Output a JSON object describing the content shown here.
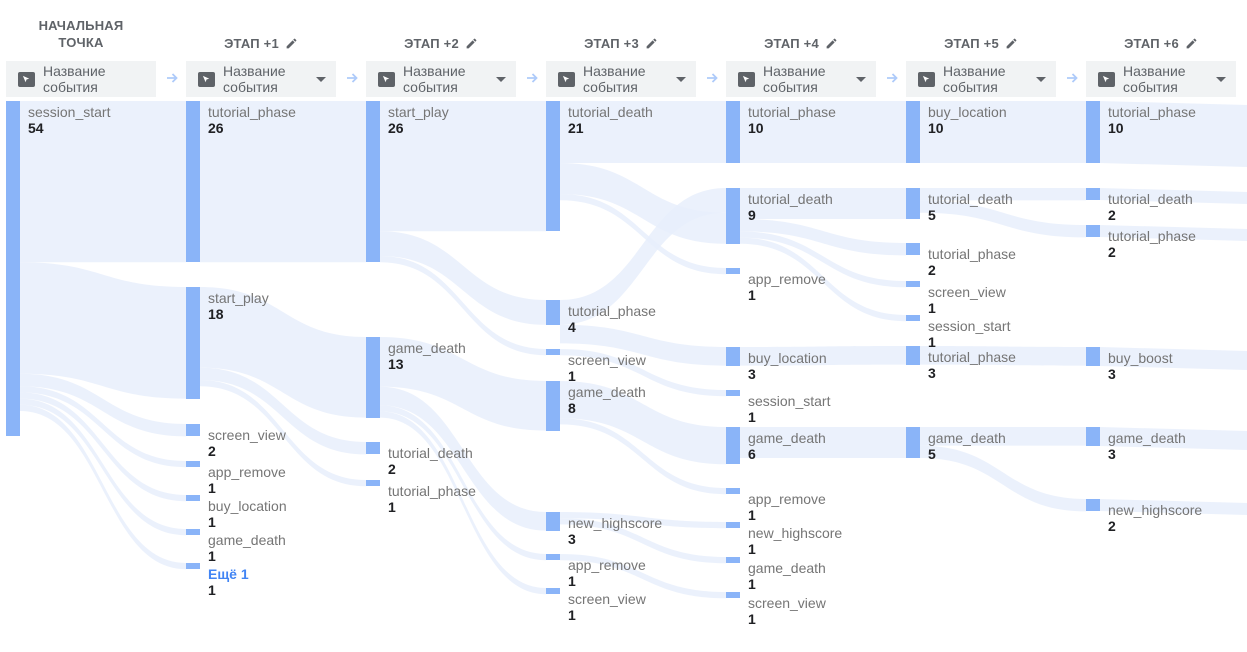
{
  "columns": [
    {
      "title_lines": [
        "НАЧАЛЬНАЯ",
        "ТОЧКА"
      ],
      "dimension": "Название события",
      "has_dropdown": false
    },
    {
      "title_lines": [
        "ЭТАП +1"
      ],
      "dimension": "Название события",
      "has_dropdown": true
    },
    {
      "title_lines": [
        "ЭТАП +2"
      ],
      "dimension": "Название события",
      "has_dropdown": true
    },
    {
      "title_lines": [
        "ЭТАП +3"
      ],
      "dimension": "Название события",
      "has_dropdown": true
    },
    {
      "title_lines": [
        "ЭТАП +4"
      ],
      "dimension": "Название события",
      "has_dropdown": true
    },
    {
      "title_lines": [
        "ЭТАП +5"
      ],
      "dimension": "Название события",
      "has_dropdown": true
    },
    {
      "title_lines": [
        "ЭТАП +6"
      ],
      "dimension": "Название события",
      "has_dropdown": true
    }
  ],
  "nodes": [
    [
      {
        "name": "session_start",
        "value": 54
      }
    ],
    [
      {
        "name": "tutorial_phase",
        "value": 26
      },
      {
        "name": "start_play",
        "value": 18
      },
      {
        "name": "screen_view",
        "value": 2
      },
      {
        "name": "app_remove",
        "value": 1
      },
      {
        "name": "buy_location",
        "value": 1
      },
      {
        "name": "game_death",
        "value": 1
      },
      {
        "name": "Ещё 1",
        "value": 1,
        "more": true
      }
    ],
    [
      {
        "name": "start_play",
        "value": 26
      },
      {
        "name": "game_death",
        "value": 13
      },
      {
        "name": "tutorial_death",
        "value": 2
      },
      {
        "name": "tutorial_phase",
        "value": 1
      }
    ],
    [
      {
        "name": "tutorial_death",
        "value": 21
      },
      {
        "name": "tutorial_phase",
        "value": 4
      },
      {
        "name": "screen_view",
        "value": 1
      },
      {
        "name": "game_death",
        "value": 8
      },
      {
        "name": "new_highscore",
        "value": 3
      },
      {
        "name": "app_remove",
        "value": 1
      },
      {
        "name": "screen_view",
        "value": 1
      }
    ],
    [
      {
        "name": "tutorial_phase",
        "value": 10
      },
      {
        "name": "tutorial_death",
        "value": 9
      },
      {
        "name": "app_remove",
        "value": 1
      },
      {
        "name": "buy_location",
        "value": 3
      },
      {
        "name": "session_start",
        "value": 1
      },
      {
        "name": "game_death",
        "value": 6
      },
      {
        "name": "app_remove",
        "value": 1
      },
      {
        "name": "new_highscore",
        "value": 1
      },
      {
        "name": "game_death",
        "value": 1
      },
      {
        "name": "screen_view",
        "value": 1
      }
    ],
    [
      {
        "name": "buy_location",
        "value": 10
      },
      {
        "name": "tutorial_death",
        "value": 5
      },
      {
        "name": "tutorial_phase",
        "value": 2
      },
      {
        "name": "screen_view",
        "value": 1
      },
      {
        "name": "session_start",
        "value": 1
      },
      {
        "name": "tutorial_phase",
        "value": 3
      },
      {
        "name": "game_death",
        "value": 5
      }
    ],
    [
      {
        "name": "tutorial_phase",
        "value": 10
      },
      {
        "name": "tutorial_death",
        "value": 2
      },
      {
        "name": "tutorial_phase",
        "value": 2
      },
      {
        "name": "buy_boost",
        "value": 3
      },
      {
        "name": "game_death",
        "value": 3
      },
      {
        "name": "new_highscore",
        "value": 2
      }
    ]
  ],
  "links": [
    {
      "from": [
        0,
        0
      ],
      "to": [
        1,
        0
      ],
      "value": 26
    },
    {
      "from": [
        0,
        0
      ],
      "to": [
        1,
        1
      ],
      "value": 18
    },
    {
      "from": [
        0,
        0
      ],
      "to": [
        1,
        2
      ],
      "value": 2
    },
    {
      "from": [
        0,
        0
      ],
      "to": [
        1,
        3
      ],
      "value": 1
    },
    {
      "from": [
        0,
        0
      ],
      "to": [
        1,
        4
      ],
      "value": 1
    },
    {
      "from": [
        0,
        0
      ],
      "to": [
        1,
        5
      ],
      "value": 1
    },
    {
      "from": [
        0,
        0
      ],
      "to": [
        1,
        6
      ],
      "value": 1
    },
    {
      "from": [
        1,
        0
      ],
      "to": [
        2,
        0
      ],
      "value": 26
    },
    {
      "from": [
        1,
        1
      ],
      "to": [
        2,
        1
      ],
      "value": 13
    },
    {
      "from": [
        1,
        1
      ],
      "to": [
        2,
        2
      ],
      "value": 2
    },
    {
      "from": [
        1,
        1
      ],
      "to": [
        2,
        3
      ],
      "value": 1
    },
    {
      "from": [
        2,
        0
      ],
      "to": [
        3,
        0
      ],
      "value": 21
    },
    {
      "from": [
        2,
        0
      ],
      "to": [
        3,
        1
      ],
      "value": 4
    },
    {
      "from": [
        2,
        0
      ],
      "to": [
        3,
        2
      ],
      "value": 1
    },
    {
      "from": [
        2,
        1
      ],
      "to": [
        3,
        3
      ],
      "value": 8
    },
    {
      "from": [
        2,
        1
      ],
      "to": [
        3,
        4
      ],
      "value": 3
    },
    {
      "from": [
        2,
        1
      ],
      "to": [
        3,
        5
      ],
      "value": 1
    },
    {
      "from": [
        2,
        1
      ],
      "to": [
        3,
        6
      ],
      "value": 1
    },
    {
      "from": [
        3,
        0
      ],
      "to": [
        4,
        0
      ],
      "value": 10
    },
    {
      "from": [
        3,
        1
      ],
      "to": [
        4,
        1
      ],
      "value": 4
    },
    {
      "from": [
        3,
        0
      ],
      "to": [
        4,
        1
      ],
      "value": 5
    },
    {
      "from": [
        3,
        0
      ],
      "to": [
        4,
        2
      ],
      "value": 1
    },
    {
      "from": [
        3,
        1
      ],
      "to": [
        4,
        3
      ],
      "value": 3
    },
    {
      "from": [
        3,
        2
      ],
      "to": [
        4,
        4
      ],
      "value": 1
    },
    {
      "from": [
        3,
        3
      ],
      "to": [
        4,
        5
      ],
      "value": 6
    },
    {
      "from": [
        3,
        3
      ],
      "to": [
        4,
        6
      ],
      "value": 1
    },
    {
      "from": [
        3,
        4
      ],
      "to": [
        4,
        7
      ],
      "value": 1
    },
    {
      "from": [
        3,
        4
      ],
      "to": [
        4,
        8
      ],
      "value": 1
    },
    {
      "from": [
        3,
        5
      ],
      "to": [
        4,
        9
      ],
      "value": 1
    },
    {
      "from": [
        4,
        0
      ],
      "to": [
        5,
        0
      ],
      "value": 10
    },
    {
      "from": [
        4,
        1
      ],
      "to": [
        5,
        1
      ],
      "value": 5
    },
    {
      "from": [
        4,
        1
      ],
      "to": [
        5,
        2
      ],
      "value": 2
    },
    {
      "from": [
        4,
        1
      ],
      "to": [
        5,
        3
      ],
      "value": 1
    },
    {
      "from": [
        4,
        1
      ],
      "to": [
        5,
        4
      ],
      "value": 1
    },
    {
      "from": [
        4,
        3
      ],
      "to": [
        5,
        5
      ],
      "value": 3
    },
    {
      "from": [
        4,
        5
      ],
      "to": [
        5,
        6
      ],
      "value": 5
    },
    {
      "from": [
        5,
        0
      ],
      "to": [
        6,
        0
      ],
      "value": 10
    },
    {
      "from": [
        5,
        1
      ],
      "to": [
        6,
        1
      ],
      "value": 2
    },
    {
      "from": [
        5,
        1
      ],
      "to": [
        6,
        2
      ],
      "value": 2
    },
    {
      "from": [
        5,
        5
      ],
      "to": [
        6,
        3
      ],
      "value": 3
    },
    {
      "from": [
        5,
        6
      ],
      "to": [
        6,
        4
      ],
      "value": 3
    },
    {
      "from": [
        5,
        6
      ],
      "to": [
        6,
        5
      ],
      "value": 2
    }
  ],
  "colors": {
    "node": "#8ab4f8",
    "link": "#e8eefb",
    "header": "#5f6368",
    "more_link": "#4285f4"
  },
  "icons": {
    "edit": "pencil-icon",
    "dimension": "cursor-select-icon",
    "dropdown": "caret-down-icon",
    "step": "arrow-right-icon"
  }
}
